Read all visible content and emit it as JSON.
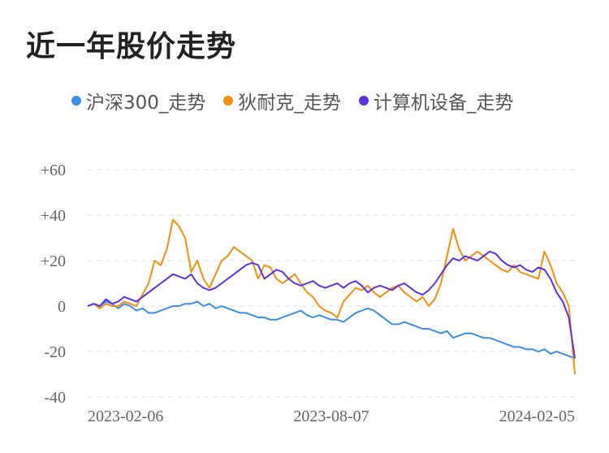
{
  "title": "近一年股价走势",
  "colors": {
    "grid": "#e8e8e8",
    "text": "#666666"
  },
  "chart_data": {
    "type": "line",
    "x_ticks": [
      "2023-02-06",
      "2023-08-07",
      "2024-02-05"
    ],
    "y_ticks": [
      "+60",
      "+40",
      "+20",
      "0",
      "-20",
      "-40"
    ],
    "ylim": [
      -40,
      60
    ],
    "grid": "horizontal dashed",
    "legend_position": "top",
    "series": [
      {
        "name": "沪深300_走势",
        "color": "#3a8ee6",
        "values": [
          0,
          1,
          0,
          2,
          1,
          -1,
          1,
          0,
          -2,
          -1,
          -3,
          -3,
          -2,
          -1,
          0,
          0,
          1,
          1,
          2,
          0,
          1,
          -1,
          0,
          -1,
          -2,
          -3,
          -3,
          -4,
          -5,
          -5,
          -6,
          -6,
          -5,
          -4,
          -3,
          -2,
          -4,
          -5,
          -4,
          -5,
          -6,
          -6,
          -7,
          -5,
          -3,
          -2,
          -1,
          -2,
          -4,
          -6,
          -8,
          -8,
          -7,
          -8,
          -9,
          -10,
          -10,
          -11,
          -12,
          -11,
          -14,
          -13,
          -12,
          -12,
          -13,
          -14,
          -14,
          -15,
          -16,
          -17,
          -18,
          -18,
          -19,
          -19,
          -20,
          -19,
          -21,
          -20,
          -21,
          -22,
          -23
        ]
      },
      {
        "name": "狄耐克_走势",
        "color": "#f0900e",
        "values": [
          0,
          1,
          -1,
          1,
          0,
          0,
          2,
          1,
          0,
          5,
          10,
          20,
          18,
          25,
          38,
          35,
          30,
          15,
          20,
          12,
          8,
          14,
          20,
          22,
          26,
          24,
          22,
          20,
          12,
          18,
          17,
          12,
          10,
          12,
          14,
          10,
          6,
          4,
          0,
          -2,
          -3,
          -5,
          2,
          5,
          8,
          7,
          9,
          6,
          4,
          6,
          8,
          9,
          6,
          4,
          2,
          4,
          0,
          3,
          10,
          22,
          34,
          25,
          20,
          22,
          24,
          22,
          20,
          18,
          16,
          15,
          18,
          15,
          14,
          13,
          12,
          24,
          18,
          10,
          6,
          0,
          -30
        ]
      },
      {
        "name": "计算机设备_走势",
        "color": "#5b32e0",
        "values": [
          0,
          1,
          0,
          3,
          1,
          2,
          4,
          3,
          2,
          4,
          6,
          8,
          10,
          12,
          14,
          13,
          12,
          14,
          10,
          8,
          7,
          8,
          10,
          12,
          14,
          16,
          18,
          19,
          18,
          12,
          14,
          16,
          15,
          12,
          10,
          9,
          10,
          11,
          9,
          8,
          9,
          10,
          8,
          10,
          11,
          9,
          6,
          8,
          9,
          8,
          7,
          9,
          10,
          8,
          6,
          5,
          7,
          10,
          14,
          18,
          21,
          20,
          22,
          21,
          20,
          22,
          24,
          23,
          20,
          18,
          17,
          18,
          16,
          15,
          17,
          16,
          12,
          6,
          2,
          -5,
          -23
        ]
      }
    ]
  }
}
